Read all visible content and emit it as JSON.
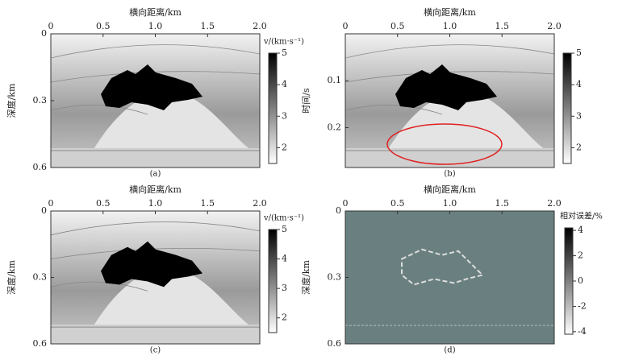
{
  "panels": [
    {
      "x_label": "横向距离/km",
      "y_label": "深度/km",
      "caption": "(a)",
      "xlim": [
        0,
        2
      ],
      "xticks": [
        0,
        0.5,
        {
          "value": 1,
          "label": "1.0"
        },
        1.5,
        {
          "value": 2,
          "label": "2.0"
        }
      ],
      "ylim": [
        0,
        0.6
      ],
      "yticks": [
        0,
        0.3,
        0.6
      ],
      "colorbar": {
        "label": "v/(km·s⁻¹)",
        "lim": [
          1.5,
          5
        ],
        "ticks": [
          2,
          3,
          4,
          5
        ]
      }
    },
    {
      "x_label": "横向距离/km",
      "y_label": "时间/s",
      "caption": "(b)",
      "xlim": [
        0,
        2
      ],
      "xticks": [
        0,
        0.5,
        {
          "value": 1,
          "label": "1.0"
        },
        1.5,
        {
          "value": 2,
          "label": "2.0"
        }
      ],
      "ylim": [
        0,
        0.285
      ],
      "yticks": [
        0.1,
        0.2
      ],
      "colorbar": {
        "label": "",
        "lim": [
          1.5,
          5
        ],
        "ticks": [
          2,
          3,
          4,
          5
        ]
      }
    },
    {
      "x_label": "横向距离/km",
      "y_label": "深度/km",
      "caption": "(c)",
      "xlim": [
        0,
        2
      ],
      "xticks": [
        0,
        0.5,
        {
          "value": 1,
          "label": "1.0"
        },
        1.5,
        {
          "value": 2,
          "label": "2.0"
        }
      ],
      "ylim": [
        0,
        0.6
      ],
      "yticks": [
        0,
        0.3,
        0.6
      ],
      "colorbar": {
        "label": "v/(km·s⁻¹)",
        "lim": [
          1.5,
          5
        ],
        "ticks": [
          2,
          3,
          4,
          5
        ]
      }
    },
    {
      "x_label": "横向距离/km",
      "y_label": "深度/km",
      "caption": "(d)",
      "xlim": [
        0,
        2
      ],
      "xticks": [
        0,
        0.5,
        {
          "value": 1,
          "label": "1.0"
        },
        1.5,
        {
          "value": 2,
          "label": "2.0"
        }
      ],
      "ylim": [
        0,
        0.6
      ],
      "yticks": [
        0,
        0.3,
        0.6
      ],
      "colorbar": {
        "label": "相对误差/%",
        "lim": [
          -4.2,
          4.2
        ],
        "ticks": [
          -4,
          -2,
          0,
          2,
          4
        ]
      }
    }
  ]
}
